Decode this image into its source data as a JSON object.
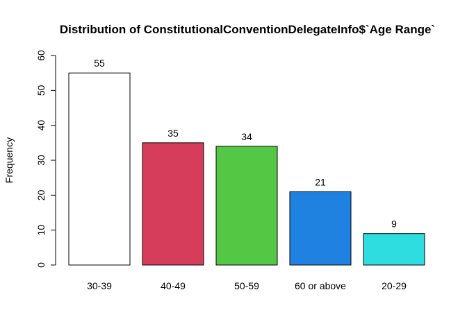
{
  "chart_data": {
    "type": "bar",
    "title": "Distribution of ConstitutionalConventionDelegateInfo$`Age Range`",
    "xlabel": "",
    "ylabel": "Frequency",
    "categories": [
      "30-39",
      "40-49",
      "50-59",
      "60 or above",
      "20-29"
    ],
    "values": [
      55,
      35,
      34,
      21,
      9
    ],
    "data_labels": [
      "55",
      "35",
      "34",
      "21",
      "9"
    ],
    "colors": [
      "#FFFFFF",
      "#D63D5A",
      "#54C845",
      "#2082E0",
      "#2EDDE0"
    ],
    "ylim": [
      0,
      60
    ],
    "yticks": [
      0,
      10,
      20,
      30,
      40,
      50,
      60
    ],
    "ytick_labels": [
      "0",
      "10",
      "20",
      "30",
      "40",
      "50",
      "60"
    ],
    "grid": false,
    "legend": "none"
  }
}
